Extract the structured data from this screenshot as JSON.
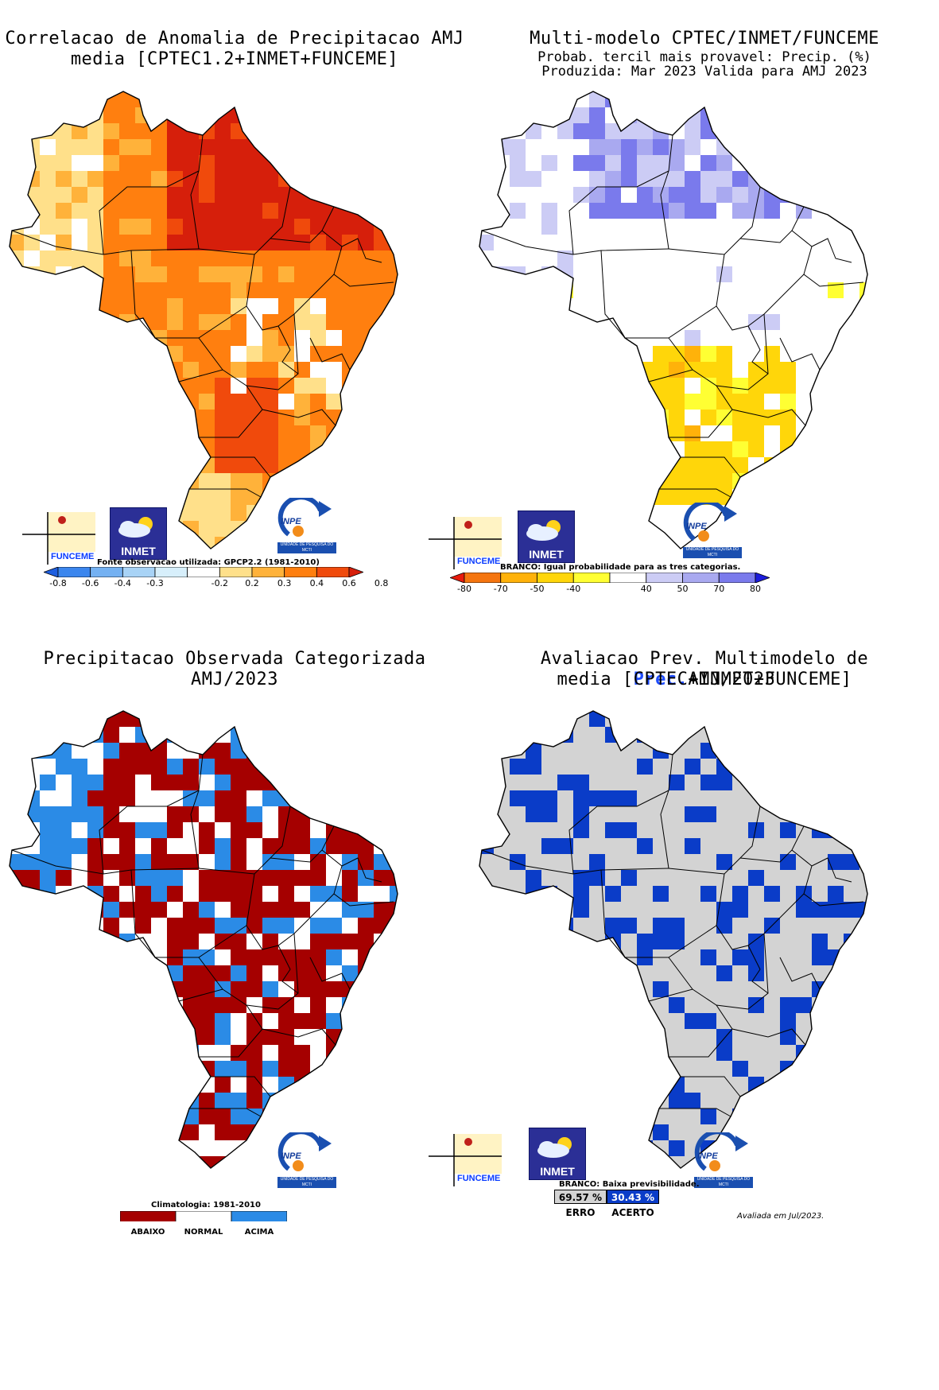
{
  "panels": {
    "p1": {
      "title_line1": "Correlacao de Anomalia de Precipitacao AMJ",
      "title_line2": "media [CPTEC1.2+INMET+FUNCEME]",
      "source_caption": "Fonte observacao utilizada: GPCP2.2 (1981-2010)",
      "colorbar_ticks": [
        "-0.8",
        "-0.6",
        "-0.4",
        "-0.3",
        "-0.2",
        "0.2",
        "0.3",
        "0.4",
        "0.6",
        "0.8"
      ],
      "colorbar_colors": [
        "#1f5fe0",
        "#3b86ee",
        "#74b1f2",
        "#a8d3f6",
        "#d7effb",
        "#ffffff",
        "#ffe08a",
        "#ffb23a",
        "#ff7f0f",
        "#f04a0c",
        "#d61f0b"
      ]
    },
    "p2": {
      "title_line1": "Multi-modelo CPTEC/INMET/FUNCEME",
      "title_line2": "Probab. tercil mais provavel: Precip. (%)",
      "title_line3": "Produzida: Mar 2023  Valida para AMJ 2023",
      "caption": "BRANCO: Igual probabilidade para as tres categorias.",
      "colorbar_ticks": [
        "-80",
        "-70",
        "-50",
        "-40",
        "40",
        "50",
        "70",
        "80"
      ],
      "colorbar_colors": [
        "#e81a0c",
        "#f5750f",
        "#ffb20a",
        "#ffd60a",
        "#ffff33",
        "#ffffff",
        "#ccccf5",
        "#a9a9f0",
        "#7a7aec",
        "#1c1cdc"
      ]
    },
    "p3": {
      "title_line1": "Precipitacao Observada Categorizada",
      "title_line2": "AMJ/2023",
      "caption": "Climatologia: 1981-2010",
      "categories": [
        "ABAIXO",
        "NORMAL",
        "ACIMA"
      ],
      "category_colors": [
        "#a50000",
        "#ffffff",
        "#2b8be6"
      ]
    },
    "p4": {
      "title_prefix": "Avaliacao Prev. Multimodelo de ",
      "title_highlight": "Prec.",
      "title_suffix": "AMJ/2023",
      "title_line2": "media [CPTEC+INMET+FUNCEME]",
      "caption": "BRANCO: Baixa previsibilidade.",
      "erro_pct": "69.57 %",
      "acerto_pct": "30.43 %",
      "erro_label": "ERRO",
      "acerto_label": "ACERTO",
      "erro_color": "#d3d3d3",
      "acerto_color": "#0a3cc8",
      "footnote": "Avaliada em Jul/2023."
    }
  },
  "logos": {
    "funceme": "FUNCEME",
    "inmet": "INMET",
    "inpe": "INPE",
    "inpe_sub": "UNIDADE DE PESQUISA DO MCTI"
  }
}
